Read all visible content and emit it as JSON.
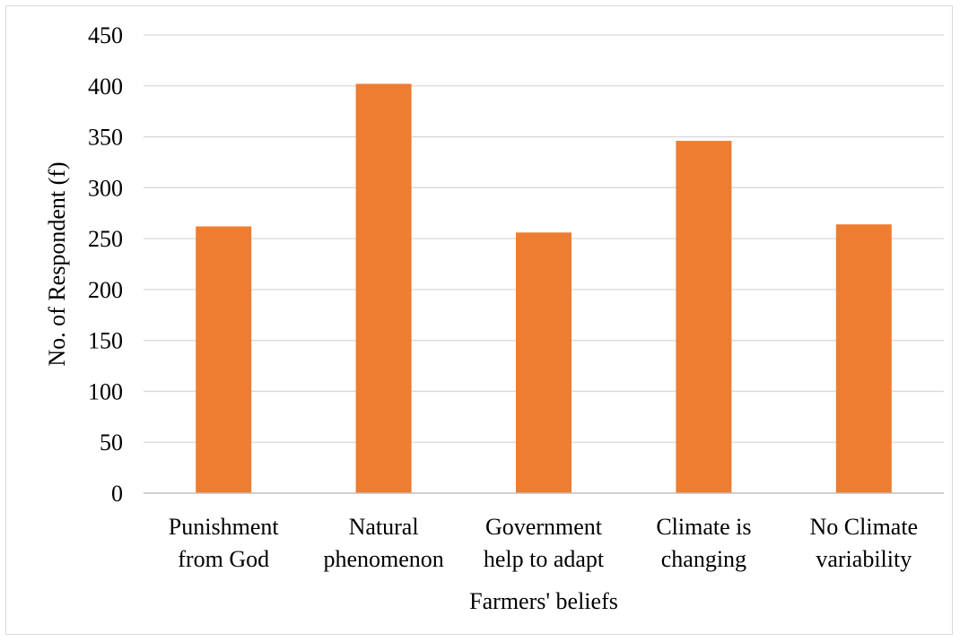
{
  "chart_data": {
    "type": "bar",
    "categories": [
      [
        "Punishment",
        "from God"
      ],
      [
        "Natural",
        "phenomenon"
      ],
      [
        "Government",
        "help to adapt"
      ],
      [
        "Climate is",
        "changing"
      ],
      [
        "No Climate",
        "variability"
      ]
    ],
    "values": [
      262,
      402,
      256,
      346,
      264
    ],
    "xlabel": "Farmers' beliefs",
    "ylabel": "No. of Respondent (f)",
    "ylim": [
      0,
      450
    ],
    "yticks": [
      0,
      50,
      100,
      150,
      200,
      250,
      300,
      350,
      400,
      450
    ],
    "grid": true,
    "colors": {
      "bar": "#ED7D31",
      "grid": "#d9d9d9",
      "axis": "#bfbfbf"
    }
  }
}
